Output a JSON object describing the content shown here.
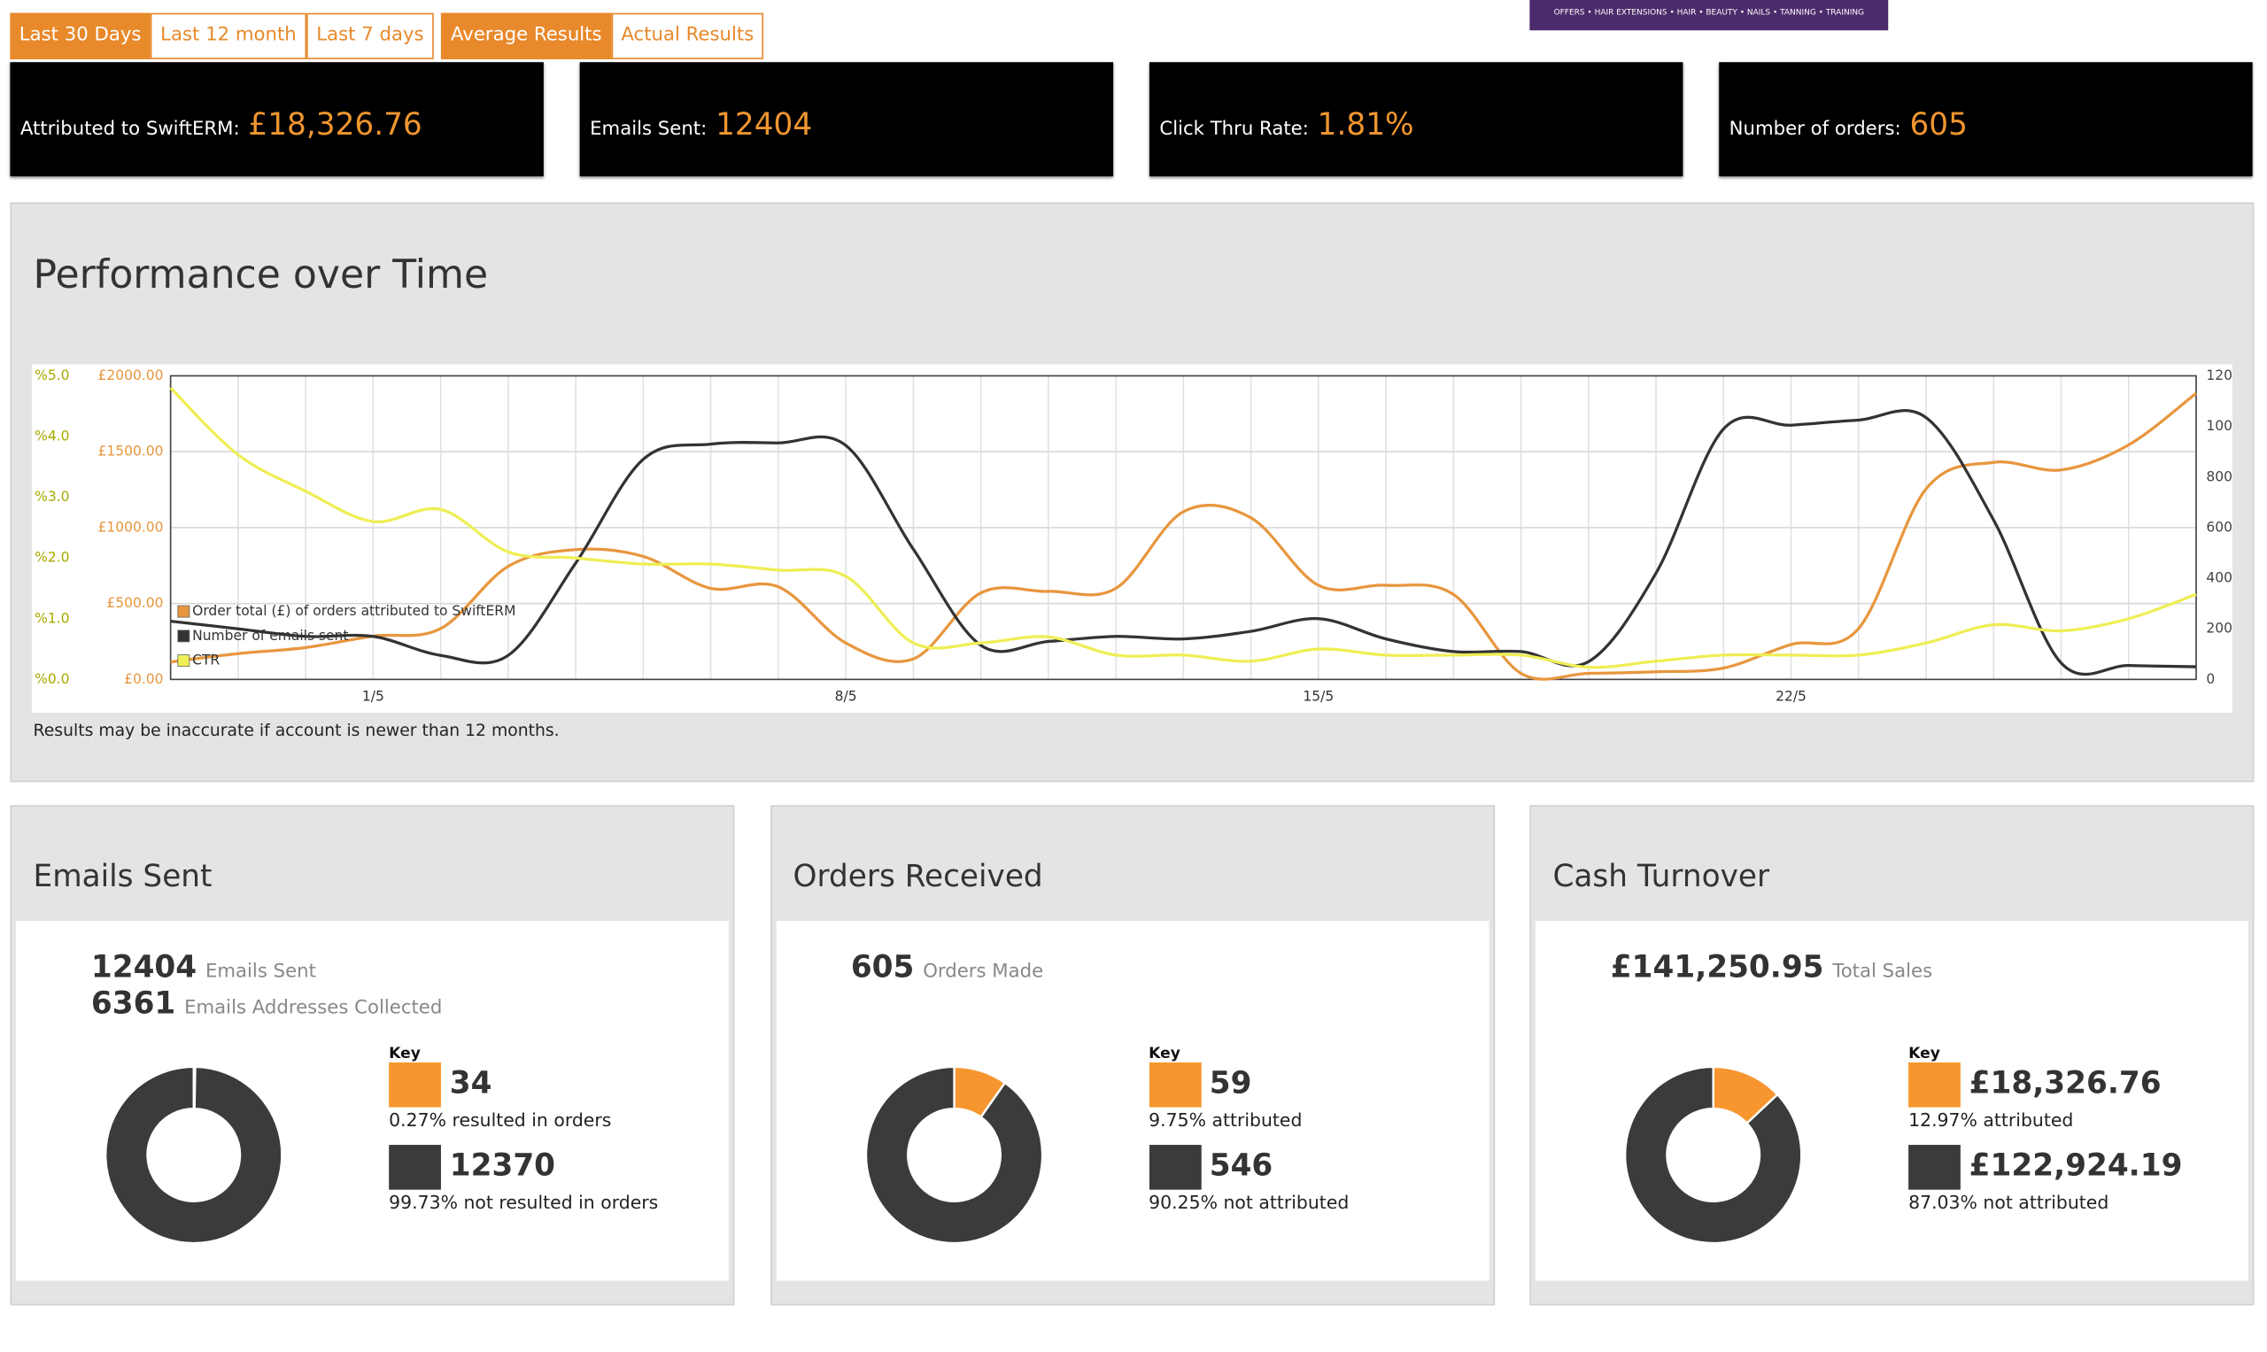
{
  "tabs": {
    "periods": [
      "Last 30 Days",
      "Last 12 month",
      "Last 7 days"
    ],
    "modes": [
      "Average Results",
      "Actual Results"
    ],
    "active_period": 0,
    "active_mode": 0
  },
  "banner": "OFFERS • HAIR EXTENSIONS • HAIR • BEAUTY • NAILS • TANNING • TRAINING",
  "stats": [
    {
      "label": "Attributed to SwiftERM:",
      "value": "£18,326.76"
    },
    {
      "label": "Emails Sent:",
      "value": 12404
    },
    {
      "label": "Click Thru Rate:",
      "value": "1.81%"
    },
    {
      "label": "Number of orders:",
      "value": 605
    }
  ],
  "performance": {
    "title": "Performance over Time",
    "note": "Results may be inaccurate if account is newer than 12 months.",
    "chart": {
      "type": "line",
      "categories": [
        null,
        null,
        null,
        "1/5",
        null,
        null,
        null,
        null,
        null,
        null,
        "8/5",
        null,
        null,
        null,
        null,
        null,
        null,
        "15/5",
        null,
        null,
        null,
        null,
        null,
        null,
        "22/5",
        null,
        null,
        null,
        null,
        null,
        null
      ],
      "ylim": [
        0,
        2000
      ],
      "yticks": [
        {
          "value": 0,
          "label": "£0.00"
        },
        {
          "value": 500,
          "label": "£500.00"
        },
        {
          "value": 1000,
          "label": "£1000.00"
        },
        {
          "value": 1500,
          "label": "£1500.00"
        },
        {
          "value": 2000,
          "label": "£2000.00"
        }
      ],
      "y2lim": [
        0,
        1200
      ],
      "y2ticks": [
        0,
        200,
        400,
        600,
        800,
        1000,
        1200
      ],
      "y3lim": [
        0,
        5
      ],
      "y3ticks": [
        {
          "value": 0,
          "label": "%0.0"
        },
        {
          "value": 1,
          "label": "%1.0"
        },
        {
          "value": 2,
          "label": "%2.0"
        },
        {
          "value": 3,
          "label": "%3.0"
        },
        {
          "value": 4,
          "label": "%4.0"
        },
        {
          "value": 5,
          "label": "%5.0"
        }
      ],
      "grid": true,
      "legend": "lower left",
      "series": [
        {
          "name": "Order total (£) of orders attributed to SwiftERM",
          "color": "#e8963e",
          "axis": "y",
          "values": [
            115,
            170,
            210,
            285,
            335,
            745,
            855,
            810,
            600,
            610,
            240,
            135,
            570,
            580,
            600,
            1105,
            1065,
            620,
            620,
            560,
            40,
            40,
            50,
            75,
            230,
            335,
            1255,
            1430,
            1380,
            1545,
            1885
          ]
        },
        {
          "name": "Number of emails sent",
          "color": "#333333",
          "axis": "y2",
          "values": [
            230,
            200,
            170,
            170,
            95,
            95,
            460,
            870,
            930,
            935,
            925,
            515,
            135,
            150,
            170,
            160,
            190,
            240,
            160,
            110,
            110,
            70,
            420,
            990,
            1005,
            1025,
            1035,
            630,
            65,
            55,
            50
          ]
        },
        {
          "name": "CTR",
          "color": "#eeee55",
          "axis": "y3",
          "values": [
            4.8,
            3.7,
            3.1,
            2.6,
            2.8,
            2.1,
            2.0,
            1.9,
            1.9,
            1.8,
            1.7,
            0.6,
            0.6,
            0.7,
            0.4,
            0.4,
            0.3,
            0.5,
            0.4,
            0.4,
            0.4,
            0.2,
            0.3,
            0.4,
            0.4,
            0.4,
            0.6,
            0.9,
            0.8,
            1.0,
            1.4
          ]
        }
      ]
    }
  },
  "panels": [
    {
      "title": "Emails Sent",
      "totals": [
        {
          "value": 12404,
          "label": "Emails Sent"
        },
        {
          "value": 6361,
          "label": "Emails Addresses Collected"
        }
      ],
      "key": "Key",
      "values": [
        34,
        12370
      ],
      "captions": [
        "0.27% resulted in orders",
        "99.73% not resulted in orders"
      ],
      "colors": [
        "#f7962f",
        "#3b3b3b"
      ]
    },
    {
      "title": "Orders Received",
      "totals": [
        {
          "value": 605,
          "label": "Orders Made"
        }
      ],
      "key": "Key",
      "values": [
        59,
        546
      ],
      "captions": [
        "9.75% attributed",
        "90.25% not attributed"
      ],
      "colors": [
        "#f7962f",
        "#3b3b3b"
      ]
    },
    {
      "title": "Cash Turnover",
      "totals": [
        {
          "value": "£141,250.95",
          "label": "Total Sales"
        }
      ],
      "key": "Key",
      "values": [
        18326.76,
        122924.19
      ],
      "value_labels": [
        "£18,326.76",
        "£122,924.19"
      ],
      "captions": [
        "12.97% attributed",
        "87.03% not attributed"
      ],
      "colors": [
        "#f7962f",
        "#3b3b3b"
      ]
    }
  ]
}
